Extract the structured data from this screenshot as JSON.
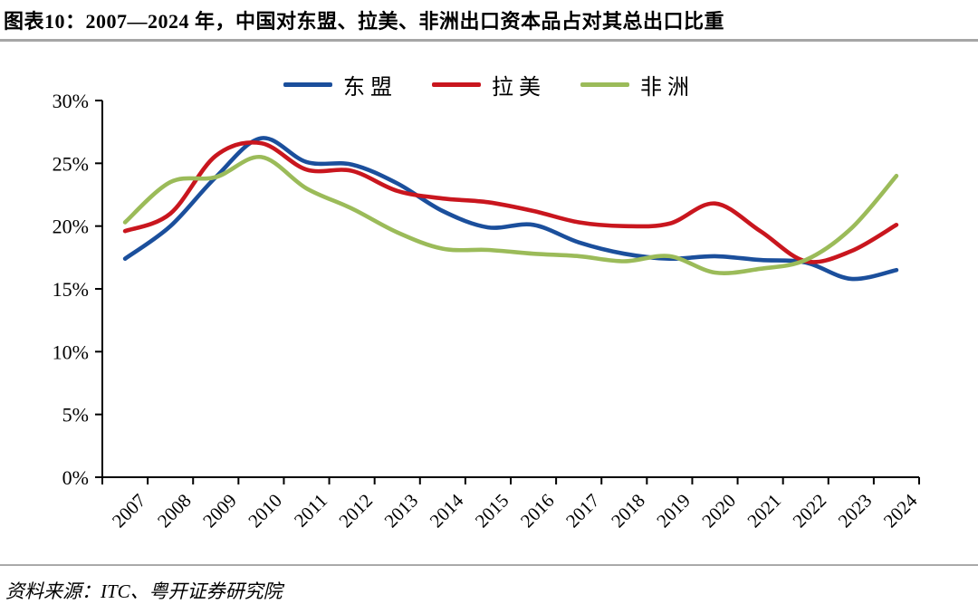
{
  "header": {
    "title": "图表10：2007—2024 年，中国对东盟、拉美、非洲出口资本品占对其总出口比重"
  },
  "chart_data": {
    "type": "line",
    "title": "2007—2024 年，中国对东盟、拉美、非洲出口资本品占对其总出口比重",
    "categories": [
      "2007",
      "2008",
      "2009",
      "2010",
      "2011",
      "2012",
      "2013",
      "2014",
      "2015",
      "2016",
      "2017",
      "2018",
      "2019",
      "2020",
      "2021",
      "2022",
      "2023",
      "2024"
    ],
    "series": [
      {
        "name": "东盟",
        "color": "#1B4F9C",
        "values": [
          17.4,
          20.0,
          23.9,
          27.0,
          25.1,
          24.9,
          23.4,
          21.2,
          19.9,
          20.1,
          18.7,
          17.8,
          17.4,
          17.6,
          17.3,
          17.1,
          15.8,
          16.5
        ]
      },
      {
        "name": "拉美",
        "color": "#C9161E",
        "values": [
          19.6,
          21.0,
          25.6,
          26.6,
          24.5,
          24.4,
          22.8,
          22.2,
          21.9,
          21.2,
          20.3,
          20.0,
          20.2,
          21.8,
          19.6,
          17.2,
          18.0,
          20.1
        ]
      },
      {
        "name": "非洲",
        "color": "#9BBB59",
        "values": [
          20.3,
          23.5,
          23.9,
          25.5,
          23.0,
          21.4,
          19.5,
          18.2,
          18.1,
          17.8,
          17.6,
          17.2,
          17.6,
          16.3,
          16.6,
          17.3,
          19.8,
          24.0
        ]
      }
    ],
    "ylim": [
      0,
      30
    ],
    "ytick_values": [
      0,
      5,
      10,
      15,
      20,
      25,
      30
    ],
    "ytick_suffix": "%",
    "xlabel": "",
    "ylabel": "",
    "grid": false,
    "legend_position": "top",
    "smoothed_lines": true,
    "x_label_rotation_deg": -45
  },
  "footer": {
    "source": "资料来源：ITC、粤开证券研究院"
  }
}
